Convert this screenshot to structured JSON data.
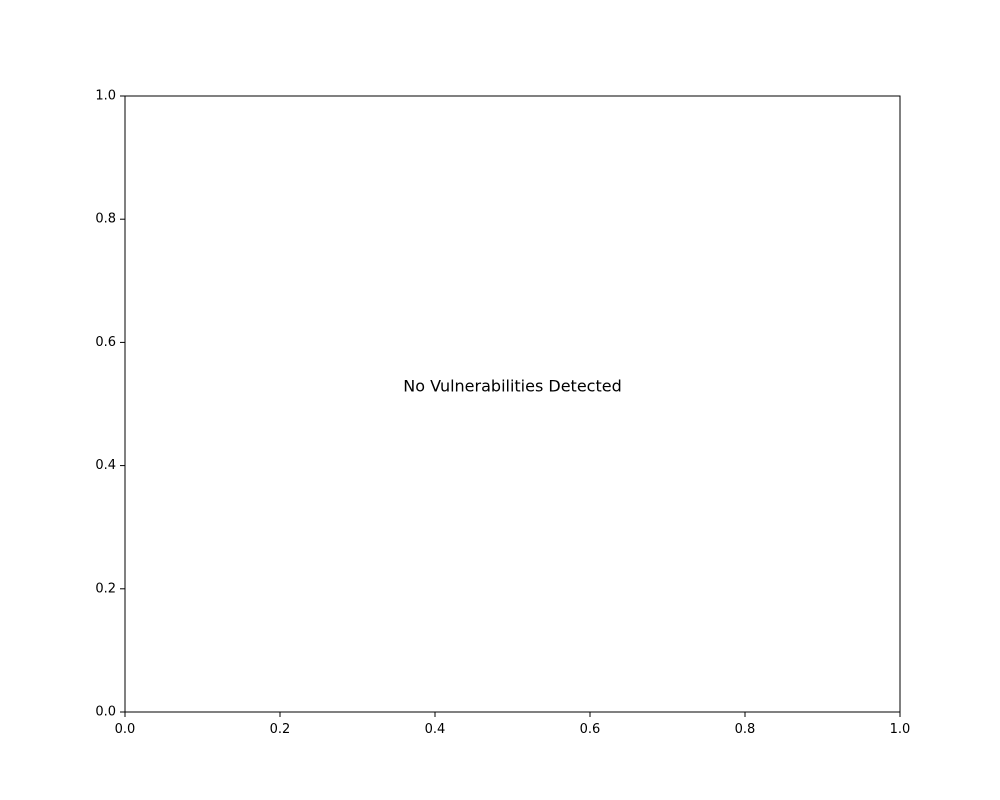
{
  "chart_data": {
    "type": "scatter",
    "title": "",
    "xlabel": "",
    "ylabel": "",
    "xlim": [
      0.0,
      1.0
    ],
    "ylim": [
      0.0,
      1.0
    ],
    "xticks": [
      0.0,
      0.2,
      0.4,
      0.6,
      0.8,
      1.0
    ],
    "yticks": [
      0.0,
      0.2,
      0.4,
      0.6,
      0.8,
      1.0
    ],
    "xtick_labels": [
      "0.0",
      "0.2",
      "0.4",
      "0.6",
      "0.8",
      "1.0"
    ],
    "ytick_labels": [
      "0.0",
      "0.2",
      "0.4",
      "0.6",
      "0.8",
      "1.0"
    ],
    "grid": false,
    "series": [],
    "annotation": {
      "text": "No Vulnerabilities Detected",
      "x": 0.5,
      "y": 0.5
    }
  }
}
